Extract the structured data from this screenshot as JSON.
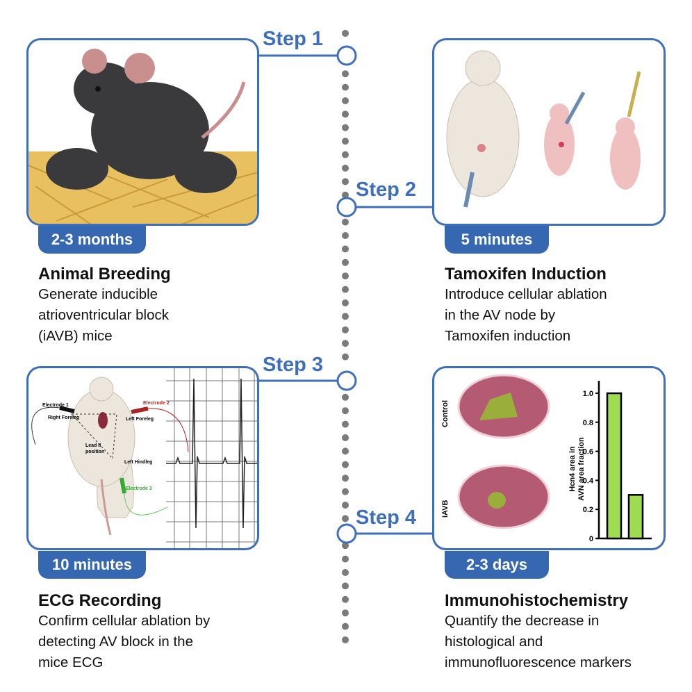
{
  "steps": [
    {
      "label": "Step 1",
      "duration": "2-3 months",
      "title": "Animal Breeding",
      "description": [
        "Generate inducible",
        "atrioventricular block",
        "(iAVB) mice"
      ]
    },
    {
      "label": "Step 2",
      "duration": "5 minutes",
      "title": "Tamoxifen Induction",
      "description": [
        "Introduce cellular ablation",
        "in the AV node by",
        "Tamoxifen induction"
      ]
    },
    {
      "label": "Step 3",
      "duration": "10 minutes",
      "title": "ECG Recording",
      "description": [
        "Confirm cellular ablation by",
        "detecting AV block in the",
        "mice ECG"
      ]
    },
    {
      "label": "Step 4",
      "duration": "2-3 days",
      "title": "Immunohistochemistry",
      "description": [
        "Quantify the decrease in",
        "histological and",
        "immunofluorescence markers"
      ]
    }
  ],
  "ecg_panel": {
    "electrode1": "Electrode 1",
    "electrode2": "Electrode 2",
    "electrode3": "Electrode 3",
    "right_foreleg": "Right Foreleg",
    "left_foreleg": "Left Foreleg",
    "left_hindleg": "Left Hindleg",
    "lead_line1": "Lead II",
    "lead_line2": "position"
  },
  "histology_panel": {
    "label_control": "Control",
    "label_iavb": "iAVB",
    "ylabel_line1": "Hcn4 area in",
    "ylabel_line2": "AVN area fraction",
    "yticks": [
      "0",
      "0.2",
      "0.4",
      "0.6",
      "0.8",
      "1.0"
    ],
    "bars": [
      {
        "group": "Control",
        "value": 1.0
      },
      {
        "group": "iAVB",
        "value": 0.3
      }
    ],
    "bar_color": "#9fdc4f"
  },
  "colors": {
    "accent": "#3f6fb8",
    "badge": "#3568b1",
    "timeline_dots": "#7a7a7a"
  }
}
